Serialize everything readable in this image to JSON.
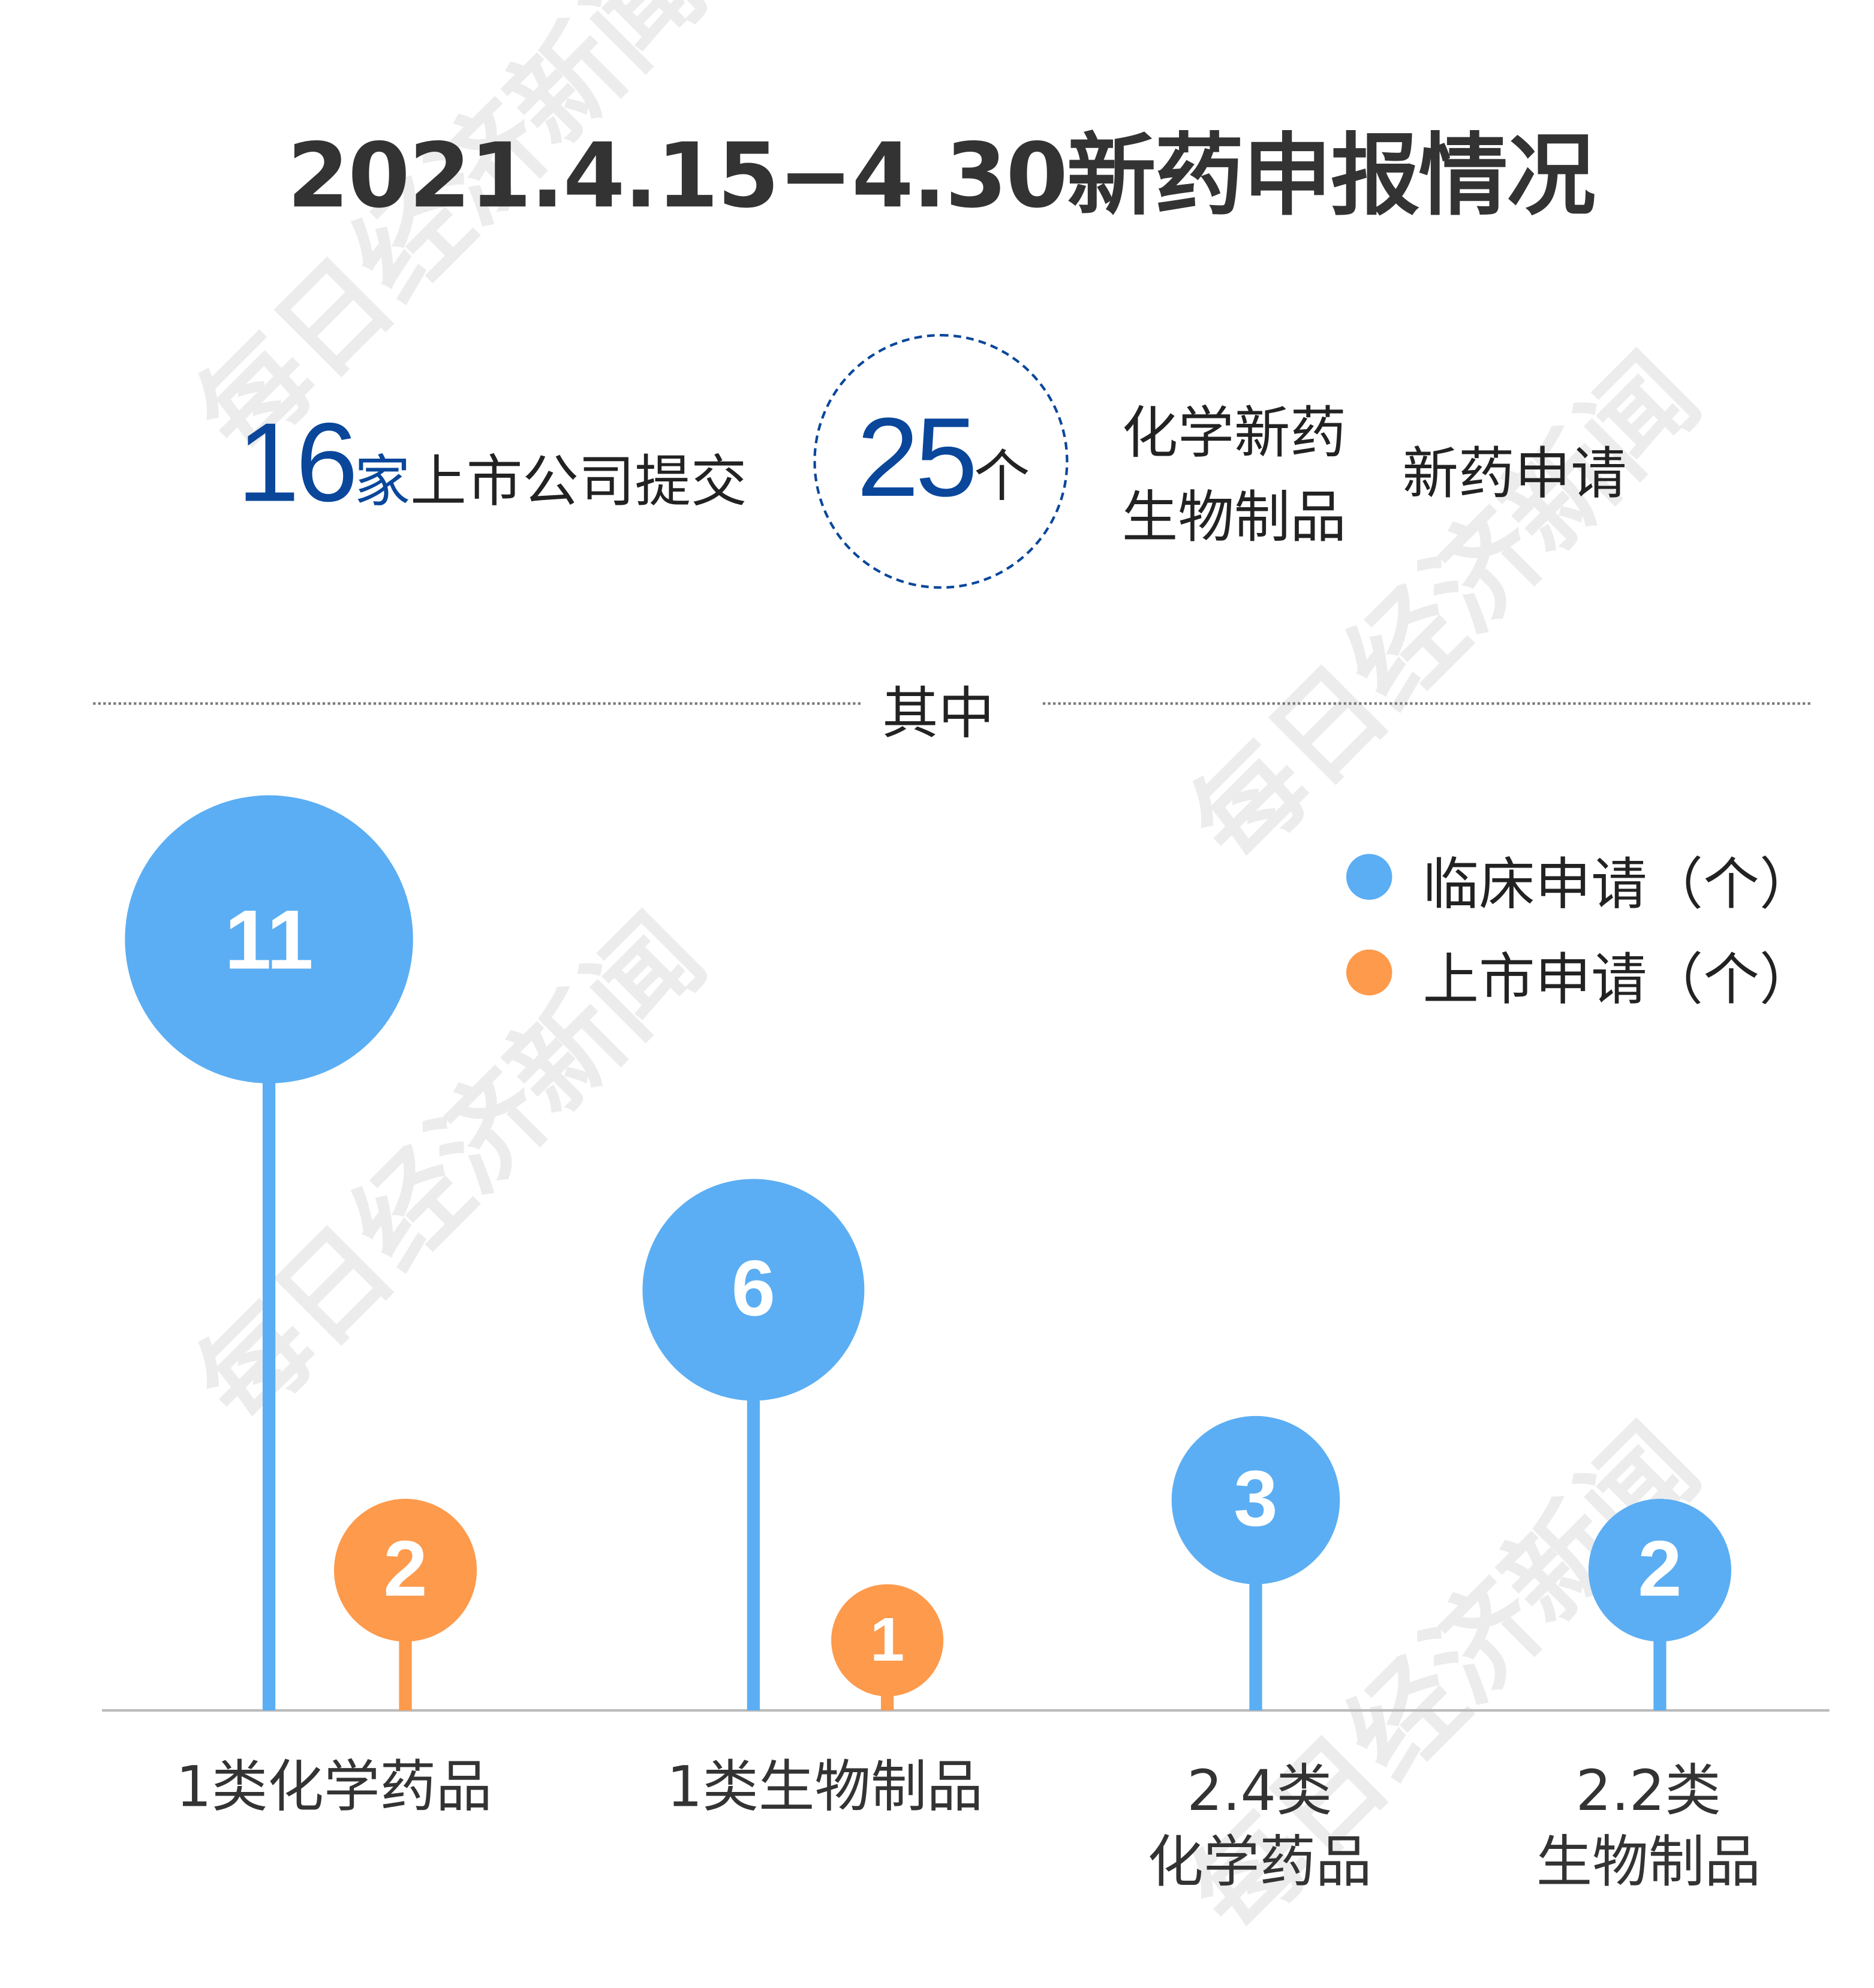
{
  "watermark": "每日经济新闻",
  "title": "2021.4.15−4.30新药申报情况",
  "summary": {
    "company_count": "16",
    "company_unit": "家",
    "company_text": "上市公司提交",
    "application_count": "25",
    "application_unit": "个",
    "type_1": "化学新药",
    "type_2": "生物制品",
    "application_text": "新药申请"
  },
  "divider_label": "其中",
  "colors": {
    "clinical": "#5baef3",
    "market": "#fd9a4c",
    "accent": "#0a479b"
  },
  "chart_data": {
    "type": "lollipop",
    "categories": [
      "1类化学药品",
      "1类生物制品",
      "2.4类\n化学药品",
      "2.2类\n生物制品"
    ],
    "legend_position": "top-right",
    "series": [
      {
        "name": "临床申请（个）",
        "values": [
          11,
          6,
          3,
          2
        ]
      },
      {
        "name": "上市申请（个）",
        "values": [
          2,
          1,
          null,
          null
        ]
      }
    ]
  }
}
